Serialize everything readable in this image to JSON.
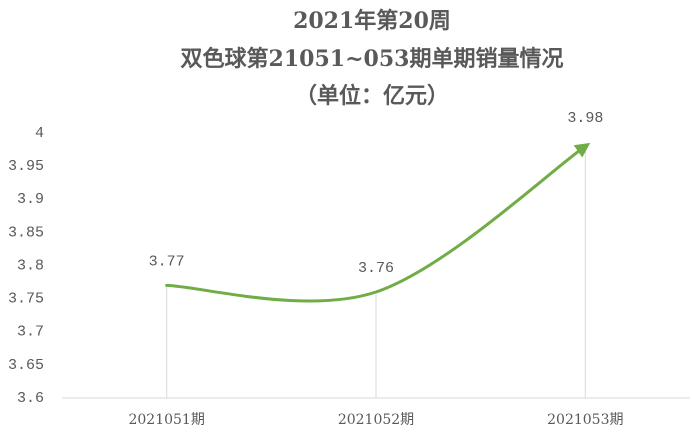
{
  "chart_data": {
    "type": "line",
    "title": "2021年第20周",
    "subtitle": "双色球第21051~053期单期销量情况",
    "unit_note": "（单位：亿元）",
    "categories": [
      "2021051期",
      "2021052期",
      "2021053期"
    ],
    "values": [
      3.77,
      3.76,
      3.98
    ],
    "color": "#70ad47",
    "smooth": true,
    "end_arrow": true,
    "drop_lines": true,
    "ylim": [
      3.6,
      4
    ],
    "yticks": [
      3.6,
      3.65,
      3.7,
      3.75,
      3.8,
      3.85,
      3.9,
      3.95,
      4
    ]
  }
}
